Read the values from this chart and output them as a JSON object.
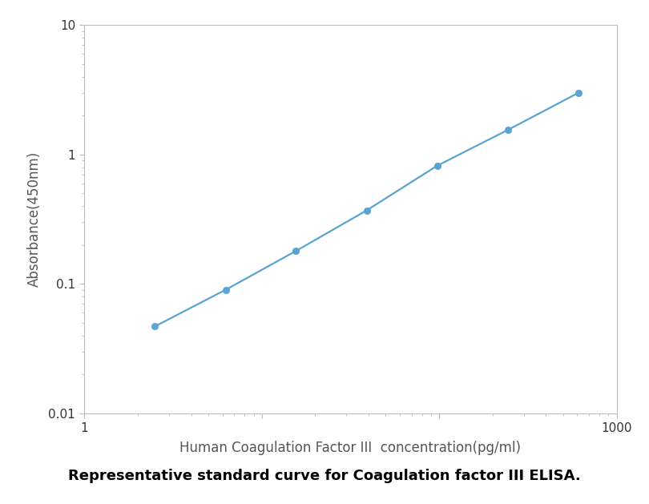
{
  "x_data": [
    2.5,
    6.25,
    15.6,
    39.0,
    97.5,
    243.75,
    609.4
  ],
  "y_data": [
    0.047,
    0.09,
    0.18,
    0.37,
    0.82,
    1.55,
    3.0
  ],
  "xlim": [
    1,
    1000
  ],
  "ylim": [
    0.01,
    10
  ],
  "xlabel": "Human Coagulation Factor III  concentration(pg/ml)",
  "ylabel": "Absorbance(450nm)",
  "line_color": "#5ba3d0",
  "marker_color": "#5ba3d0",
  "marker_style": "o",
  "marker_size": 6,
  "line_width": 1.6,
  "xlabel_fontsize": 12,
  "ylabel_fontsize": 12,
  "tick_fontsize": 11,
  "caption": "Representative standard curve for Coagulation factor III ELISA.",
  "caption_fontsize": 13,
  "figure_bg": "#ffffff",
  "axes_bg": "#ffffff",
  "spine_color": "#bbbbbb",
  "tick_color": "#bbbbbb"
}
